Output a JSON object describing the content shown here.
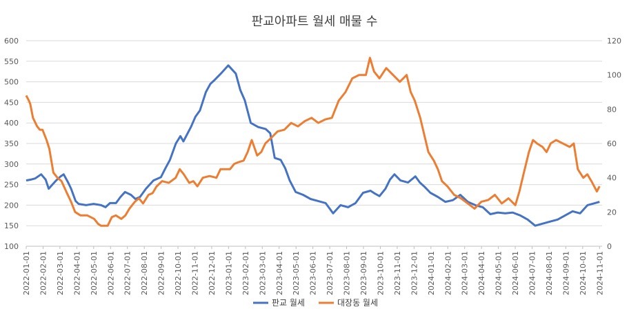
{
  "chart_data": {
    "type": "line",
    "title": "판교아파트 월세 매물 수",
    "x_labels": [
      "2022-01-01",
      "2022-02-01",
      "2022-03-01",
      "2022-04-01",
      "2022-05-01",
      "2022-06-01",
      "2022-07-01",
      "2022-08-01",
      "2022-09-01",
      "2022-10-01",
      "2022-11-01",
      "2022-12-01",
      "2023-01-01",
      "2023-02-01",
      "2023-03-01",
      "2023-04-01",
      "2023-05-01",
      "2023-06-01",
      "2023-07-01",
      "2023-08-01",
      "2023-09-01",
      "2023-10-01",
      "2023-11-01",
      "2023-12-01",
      "2024-01-01",
      "2024-02-01",
      "2024-03-01",
      "2024-04-01",
      "2024-05-01",
      "2024-06-01",
      "2024-07-01",
      "2024-08-01",
      "2024-09-01",
      "2024-10-01",
      "2024-11-01"
    ],
    "y_left": {
      "min": 100,
      "max": 600,
      "step": 50
    },
    "y_right": {
      "min": 0,
      "max": 120,
      "step": 20
    },
    "legend_position": "bottom",
    "series": [
      {
        "name": "판교 월세",
        "axis": "left",
        "color": "#4472C4",
        "points": [
          [
            0,
            260
          ],
          [
            0.3,
            262
          ],
          [
            0.6,
            265
          ],
          [
            1,
            275
          ],
          [
            1.3,
            262
          ],
          [
            1.5,
            240
          ],
          [
            1.8,
            252
          ],
          [
            2,
            260
          ],
          [
            2.3,
            270
          ],
          [
            2.5,
            275
          ],
          [
            2.8,
            255
          ],
          [
            3,
            240
          ],
          [
            3.3,
            210
          ],
          [
            3.5,
            203
          ],
          [
            4,
            200
          ],
          [
            4.5,
            203
          ],
          [
            5,
            200
          ],
          [
            5.3,
            195
          ],
          [
            5.6,
            205
          ],
          [
            6,
            205
          ],
          [
            6.3,
            220
          ],
          [
            6.6,
            232
          ],
          [
            7,
            225
          ],
          [
            7.3,
            215
          ],
          [
            7.6,
            220
          ],
          [
            8,
            240
          ],
          [
            8.5,
            260
          ],
          [
            9,
            268
          ],
          [
            9.3,
            290
          ],
          [
            9.6,
            310
          ],
          [
            10,
            350
          ],
          [
            10.3,
            368
          ],
          [
            10.5,
            355
          ],
          [
            11,
            390
          ],
          [
            11.3,
            415
          ],
          [
            11.6,
            430
          ],
          [
            12,
            475
          ],
          [
            12.3,
            495
          ],
          [
            12.6,
            505
          ],
          [
            13,
            520
          ],
          [
            13.5,
            540
          ],
          [
            14,
            520
          ],
          [
            14.3,
            480
          ],
          [
            14.6,
            455
          ],
          [
            15,
            400
          ],
          [
            15.5,
            390
          ],
          [
            16,
            385
          ],
          [
            16.3,
            375
          ],
          [
            16.6,
            315
          ],
          [
            17,
            310
          ],
          [
            17.3,
            290
          ],
          [
            17.6,
            260
          ],
          [
            18,
            232
          ],
          [
            18.5,
            225
          ],
          [
            19,
            215
          ],
          [
            19.5,
            210
          ],
          [
            20,
            205
          ],
          [
            20.5,
            180
          ],
          [
            21,
            200
          ],
          [
            21.5,
            195
          ],
          [
            22,
            205
          ],
          [
            22.5,
            230
          ],
          [
            23,
            235
          ],
          [
            23.3,
            228
          ],
          [
            23.6,
            222
          ],
          [
            24,
            240
          ],
          [
            24.3,
            262
          ],
          [
            24.6,
            275
          ],
          [
            25,
            260
          ],
          [
            25.5,
            255
          ],
          [
            26,
            270
          ],
          [
            26.3,
            255
          ],
          [
            26.6,
            245
          ],
          [
            27,
            230
          ],
          [
            27.5,
            220
          ],
          [
            28,
            208
          ],
          [
            28.5,
            212
          ],
          [
            29,
            225
          ],
          [
            29.5,
            208
          ],
          [
            30,
            200
          ],
          [
            30.5,
            195
          ],
          [
            31,
            178
          ],
          [
            31.5,
            182
          ],
          [
            32,
            180
          ],
          [
            32.5,
            182
          ],
          [
            33,
            175
          ],
          [
            33.5,
            165
          ],
          [
            34,
            150
          ],
          [
            34.5,
            155
          ],
          [
            35,
            160
          ],
          [
            35.5,
            165
          ],
          [
            36,
            175
          ],
          [
            36.5,
            185
          ],
          [
            37,
            180
          ],
          [
            37.5,
            200
          ],
          [
            38,
            205
          ],
          [
            38.3,
            208
          ]
        ]
      },
      {
        "name": "대장동 월세",
        "axis": "right",
        "color": "#ED7D31",
        "points": [
          [
            0,
            88
          ],
          [
            0.2,
            85
          ],
          [
            0.3,
            83
          ],
          [
            0.5,
            75
          ],
          [
            0.8,
            70
          ],
          [
            1,
            68
          ],
          [
            1.2,
            68
          ],
          [
            1.3,
            66
          ],
          [
            1.5,
            62
          ],
          [
            1.7,
            57
          ],
          [
            2,
            43
          ],
          [
            2.3,
            40
          ],
          [
            2.6,
            38
          ],
          [
            3,
            31
          ],
          [
            3.3,
            26
          ],
          [
            3.6,
            20
          ],
          [
            4,
            18
          ],
          [
            4.5,
            18
          ],
          [
            5,
            16
          ],
          [
            5.3,
            13
          ],
          [
            5.5,
            12
          ],
          [
            6,
            12
          ],
          [
            6.3,
            17
          ],
          [
            6.6,
            18
          ],
          [
            7,
            16
          ],
          [
            7.3,
            18
          ],
          [
            7.6,
            22
          ],
          [
            8,
            26
          ],
          [
            8.3,
            28
          ],
          [
            8.6,
            25
          ],
          [
            9,
            30
          ],
          [
            9.3,
            31
          ],
          [
            9.6,
            35
          ],
          [
            10,
            38
          ],
          [
            10.5,
            37
          ],
          [
            11,
            40
          ],
          [
            11.3,
            45
          ],
          [
            11.6,
            42
          ],
          [
            12,
            37
          ],
          [
            12.3,
            38
          ],
          [
            12.6,
            35
          ],
          [
            13,
            40
          ],
          [
            13.5,
            41
          ],
          [
            14,
            40
          ],
          [
            14.3,
            45
          ],
          [
            14.6,
            45
          ],
          [
            15,
            45
          ],
          [
            15.3,
            48
          ],
          [
            15.6,
            49
          ],
          [
            16,
            50
          ],
          [
            16.3,
            55
          ],
          [
            16.6,
            62
          ],
          [
            17,
            53
          ],
          [
            17.3,
            55
          ],
          [
            17.6,
            60
          ],
          [
            18,
            63
          ],
          [
            18.5,
            67
          ],
          [
            19,
            68
          ],
          [
            19.5,
            72
          ],
          [
            20,
            70
          ],
          [
            20.5,
            73
          ],
          [
            21,
            75
          ],
          [
            21.5,
            72
          ],
          [
            22,
            74
          ],
          [
            22.5,
            75
          ],
          [
            23,
            85
          ],
          [
            23.5,
            90
          ],
          [
            24,
            98
          ],
          [
            24.5,
            100
          ],
          [
            25,
            100
          ],
          [
            25.3,
            110
          ],
          [
            25.6,
            102
          ],
          [
            26,
            98
          ],
          [
            26.5,
            104
          ],
          [
            27,
            100
          ],
          [
            27.5,
            96
          ],
          [
            28,
            100
          ],
          [
            28.3,
            90
          ],
          [
            28.6,
            85
          ],
          [
            29,
            75
          ],
          [
            29.3,
            65
          ],
          [
            29.6,
            55
          ],
          [
            30,
            50
          ],
          [
            30.3,
            45
          ],
          [
            30.6,
            38
          ],
          [
            31,
            35
          ],
          [
            31.5,
            30
          ],
          [
            32,
            28
          ],
          [
            32.5,
            25
          ],
          [
            33,
            22
          ],
          [
            33.5,
            26
          ],
          [
            34,
            27
          ],
          [
            34.5,
            30
          ],
          [
            35,
            25
          ],
          [
            35.5,
            28
          ],
          [
            36,
            24
          ],
          [
            36.3,
            32
          ],
          [
            36.6,
            42
          ],
          [
            37,
            55
          ],
          [
            37.3,
            62
          ],
          [
            37.6,
            60
          ],
          [
            38,
            58
          ],
          [
            38.3,
            55
          ],
          [
            38.6,
            60
          ],
          [
            39,
            62
          ],
          [
            39.5,
            60
          ],
          [
            40,
            58
          ],
          [
            40.3,
            60
          ],
          [
            40.6,
            45
          ],
          [
            41,
            40
          ],
          [
            41.3,
            42
          ],
          [
            41.6,
            38
          ],
          [
            42,
            32
          ],
          [
            42.2,
            35
          ]
        ]
      }
    ]
  }
}
